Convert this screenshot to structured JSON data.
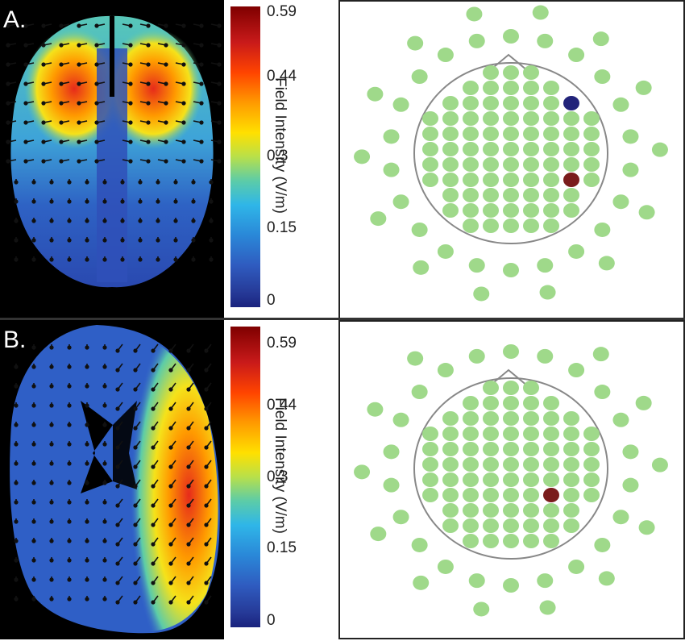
{
  "panels": [
    {
      "label": "A.",
      "colorbar": {
        "title": "Field Intensity (V/m)",
        "ticks": [
          "0.59",
          "0.44",
          "0.3",
          "0.15",
          "0"
        ]
      },
      "electrodes": {
        "anode_color": "#7a1c1c",
        "cathode_color": "#22237a",
        "normal_color": "#9fd98a"
      }
    },
    {
      "label": "B.",
      "colorbar": {
        "title": "Field Intensity (V/m)",
        "ticks": [
          "0.59",
          "0.44",
          "0.3",
          "0.15",
          "0"
        ]
      },
      "electrodes": {
        "anode_color": "#7a1c1c",
        "cathode_color": "#22237a",
        "normal_color": "#9fd98a"
      }
    }
  ]
}
